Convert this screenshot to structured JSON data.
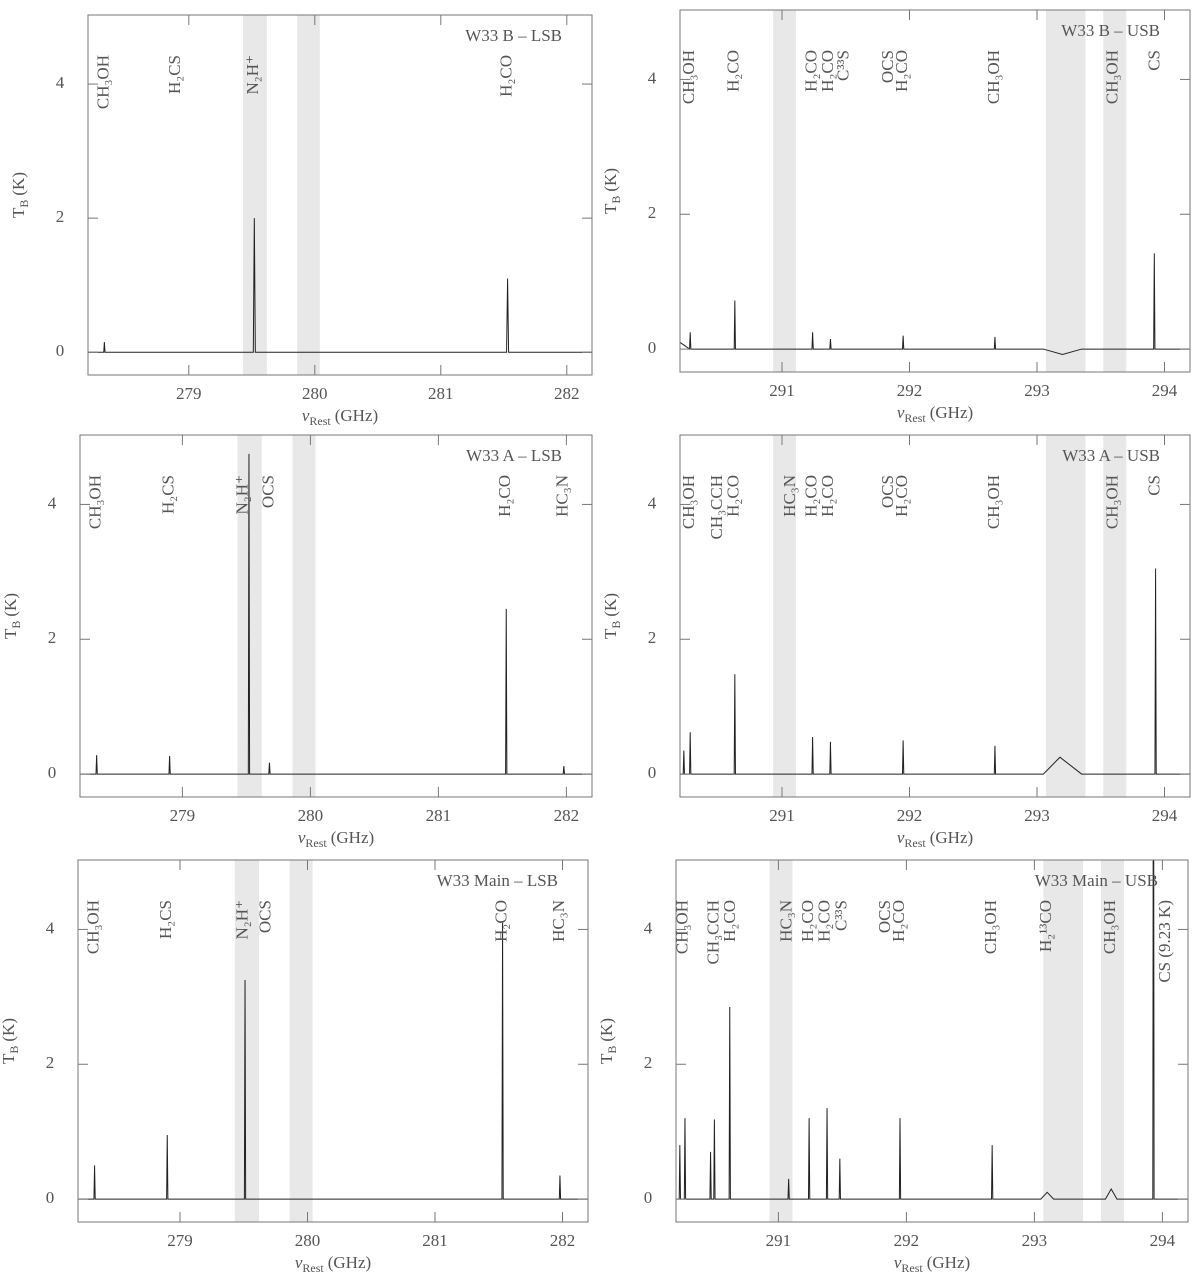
{
  "chart_data": [
    {
      "type": "line",
      "title": "W33 B – LSB",
      "ylabel": {
        "main": "T",
        "sub": "B",
        "unit": "(K)"
      },
      "xlabel": {
        "main": "ν",
        "sub": "Rest",
        "unit": "(GHz)"
      },
      "xlim": [
        278.2,
        282.2
      ],
      "xticks": [
        279,
        280,
        281,
        282
      ],
      "ylim": [
        -0.34,
        5.03
      ],
      "yticks": [
        0,
        2,
        4
      ],
      "color": "#222222",
      "band_color": "#e8e8e8",
      "bands": [
        [
          279.43,
          279.62
        ],
        [
          279.86,
          280.04
        ]
      ],
      "annotations": [
        {
          "text": "CH₃OH",
          "x": 278.33
        },
        {
          "text": "H₂CS",
          "x": 278.9
        },
        {
          "text": "N₂H⁺",
          "x": 279.52
        },
        {
          "text": "H₂CO",
          "x": 281.53
        }
      ],
      "x": [
        278.2,
        278.325,
        278.33,
        278.335,
        279.512,
        279.52,
        279.528,
        281.522,
        281.53,
        281.538,
        282.2
      ],
      "values": [
        0,
        0,
        0.15,
        0,
        0,
        2.0,
        0,
        0,
        1.1,
        0,
        0
      ]
    },
    {
      "type": "line",
      "title": "W33 B – USB",
      "ylabel": {
        "main": "T",
        "sub": "B",
        "unit": "(K)"
      },
      "xlabel": {
        "main": "ν",
        "sub": "Rest",
        "unit": "(GHz)"
      },
      "xlim": [
        290.2,
        294.2
      ],
      "xticks": [
        291,
        292,
        293,
        294
      ],
      "ylim": [
        -0.34,
        5.03
      ],
      "yticks": [
        0,
        2,
        4
      ],
      "color": "#222222",
      "band_color": "#e8e8e8",
      "bands": [
        [
          290.93,
          291.11
        ],
        [
          293.07,
          293.38
        ],
        [
          293.52,
          293.7
        ]
      ],
      "annotations": [
        {
          "text": "CH₃OH",
          "x": 290.28
        },
        {
          "text": "H₂CO",
          "x": 290.63
        },
        {
          "text": "H₂CO",
          "x": 291.24
        },
        {
          "text": "H₂CO",
          "x": 291.37
        },
        {
          "text": "C³³S",
          "x": 291.49
        },
        {
          "text": "OCS",
          "x": 291.84
        },
        {
          "text": "H₂CO",
          "x": 291.95
        },
        {
          "text": "CH₃OH",
          "x": 292.67
        },
        {
          "text": "CH₃OH",
          "x": 293.6
        },
        {
          "text": "CS",
          "x": 293.93
        }
      ],
      "x": [
        290.2,
        290.275,
        290.28,
        290.285,
        290.625,
        290.63,
        290.635,
        291.235,
        291.24,
        291.245,
        291.375,
        291.38,
        291.385,
        291.945,
        291.95,
        291.955,
        292.665,
        292.67,
        292.675,
        293.05,
        293.2,
        293.35,
        293.915,
        293.92,
        293.925,
        294.2
      ],
      "values": [
        0.1,
        0,
        0.25,
        0,
        0,
        0.72,
        0,
        0,
        0.25,
        0,
        0,
        0.15,
        0,
        0,
        0.2,
        0,
        0,
        0.18,
        0,
        0,
        -0.08,
        0,
        0,
        1.42,
        0,
        0
      ]
    },
    {
      "type": "line",
      "title": "W33 A – LSB",
      "ylabel": {
        "main": "T",
        "sub": "B",
        "unit": "(K)"
      },
      "xlabel": {
        "main": "ν",
        "sub": "Rest",
        "unit": "(GHz)"
      },
      "xlim": [
        278.2,
        282.2
      ],
      "xticks": [
        279,
        280,
        281,
        282
      ],
      "ylim": [
        -0.34,
        5.03
      ],
      "yticks": [
        0,
        2,
        4
      ],
      "color": "#222222",
      "band_color": "#e8e8e8",
      "bands": [
        [
          279.43,
          279.62
        ],
        [
          279.86,
          280.04
        ]
      ],
      "annotations": [
        {
          "text": "CH₃OH",
          "x": 278.33
        },
        {
          "text": "H₂CS",
          "x": 278.9
        },
        {
          "text": "N₂H⁺",
          "x": 279.48
        },
        {
          "text": "OCS",
          "x": 279.68
        },
        {
          "text": "H₂CO",
          "x": 281.53
        },
        {
          "text": "HC₃N",
          "x": 281.98
        }
      ],
      "x": [
        278.2,
        278.325,
        278.33,
        278.335,
        278.895,
        278.9,
        278.905,
        279.515,
        279.52,
        279.525,
        279.675,
        279.68,
        279.685,
        281.525,
        281.53,
        281.535,
        281.975,
        281.98,
        281.985,
        282.2
      ],
      "values": [
        0,
        0,
        0.28,
        0,
        0,
        0.27,
        0,
        0,
        4.75,
        0,
        0,
        0.17,
        0,
        0,
        2.45,
        0,
        0,
        0.12,
        0,
        0
      ]
    },
    {
      "type": "line",
      "title": "W33 A – USB",
      "ylabel": {
        "main": "T",
        "sub": "B",
        "unit": "(K)"
      },
      "xlabel": {
        "main": "ν",
        "sub": "Rest",
        "unit": "(GHz)"
      },
      "xlim": [
        290.2,
        294.2
      ],
      "xticks": [
        291,
        292,
        293,
        294
      ],
      "ylim": [
        -0.34,
        5.03
      ],
      "yticks": [
        0,
        2,
        4
      ],
      "color": "#222222",
      "band_color": "#e8e8e8",
      "bands": [
        [
          290.93,
          291.11
        ],
        [
          293.07,
          293.38
        ],
        [
          293.52,
          293.7
        ]
      ],
      "annotations": [
        {
          "text": "CH₃OH",
          "x": 290.28
        },
        {
          "text": "CH₃CCH",
          "x": 290.5
        },
        {
          "text": "H₂CO",
          "x": 290.63
        },
        {
          "text": "HC₃N",
          "x": 291.07
        },
        {
          "text": "H₂CO",
          "x": 291.24
        },
        {
          "text": "H₂CO",
          "x": 291.37
        },
        {
          "text": "OCS",
          "x": 291.84
        },
        {
          "text": "H₂CO",
          "x": 291.95
        },
        {
          "text": "CH₃OH",
          "x": 292.67
        },
        {
          "text": "CH₃OH",
          "x": 293.6
        },
        {
          "text": "CS",
          "x": 293.93
        }
      ],
      "x": [
        290.2,
        290.225,
        290.23,
        290.235,
        290.275,
        290.28,
        290.285,
        290.625,
        290.63,
        290.635,
        291.235,
        291.24,
        291.245,
        291.375,
        291.38,
        291.385,
        291.945,
        291.95,
        291.955,
        292.665,
        292.67,
        292.675,
        293.05,
        293.18,
        293.35,
        293.925,
        293.93,
        293.935,
        294.2
      ],
      "values": [
        0,
        0,
        0.35,
        0,
        0,
        0.62,
        0,
        0,
        1.48,
        0,
        0,
        0.55,
        0,
        0,
        0.48,
        0,
        0,
        0.5,
        0,
        0,
        0.42,
        0,
        0,
        0.25,
        0,
        0,
        3.05,
        0,
        0
      ]
    },
    {
      "type": "line",
      "title": "W33 Main – LSB",
      "ylabel": {
        "main": "T",
        "sub": "B",
        "unit": "(K)"
      },
      "xlabel": {
        "main": "ν",
        "sub": "Rest",
        "unit": "(GHz)"
      },
      "xlim": [
        278.2,
        282.2
      ],
      "xticks": [
        279,
        280,
        281,
        282
      ],
      "ylim": [
        -0.34,
        5.03
      ],
      "yticks": [
        0,
        2,
        4
      ],
      "color": "#222222",
      "band_color": "#e8e8e8",
      "bands": [
        [
          279.43,
          279.62
        ],
        [
          279.86,
          280.04
        ]
      ],
      "annotations": [
        {
          "text": "CH₃OH",
          "x": 278.33
        },
        {
          "text": "H₂CS",
          "x": 278.9
        },
        {
          "text": "N₂H⁺",
          "x": 279.5
        },
        {
          "text": "OCS",
          "x": 279.68
        },
        {
          "text": "H₂CO",
          "x": 281.53
        },
        {
          "text": "HC₃N",
          "x": 281.98
        }
      ],
      "x": [
        278.2,
        278.325,
        278.33,
        278.335,
        278.895,
        278.9,
        278.905,
        279.505,
        279.51,
        279.515,
        281.525,
        281.53,
        281.535,
        281.975,
        281.98,
        281.985,
        282.2
      ],
      "values": [
        0,
        0,
        0.5,
        0,
        0,
        0.95,
        0,
        0,
        3.25,
        0,
        0,
        4.1,
        0,
        0,
        0.35,
        0,
        0
      ]
    },
    {
      "type": "line",
      "title": "W33 Main – USB",
      "ylabel": {
        "main": "T",
        "sub": "B",
        "unit": "(K)"
      },
      "xlabel": {
        "main": "ν",
        "sub": "Rest",
        "unit": "(GHz)"
      },
      "xlim": [
        290.2,
        294.2
      ],
      "xticks": [
        291,
        292,
        293,
        294
      ],
      "ylim": [
        -0.34,
        5.03
      ],
      "yticks": [
        0,
        2,
        4
      ],
      "color": "#222222",
      "band_color": "#e8e8e8",
      "bands": [
        [
          290.93,
          291.11
        ],
        [
          293.07,
          293.38
        ],
        [
          293.52,
          293.7
        ]
      ],
      "annotations": [
        {
          "text": "CH₃OH",
          "x": 290.26
        },
        {
          "text": "CH₃CCH",
          "x": 290.5
        },
        {
          "text": "H₂CO",
          "x": 290.63
        },
        {
          "text": "HC₃N",
          "x": 291.07
        },
        {
          "text": "H₂CO",
          "x": 291.24
        },
        {
          "text": "H₂CO",
          "x": 291.37
        },
        {
          "text": "C³³S",
          "x": 291.5
        },
        {
          "text": "OCS",
          "x": 291.84
        },
        {
          "text": "H₂CO",
          "x": 291.95
        },
        {
          "text": "CH₃OH",
          "x": 292.67
        },
        {
          "text": "H₂¹³CO",
          "x": 293.1
        },
        {
          "text": "CH₃OH",
          "x": 293.6
        },
        {
          "text": "CS (9.23 K)",
          "x": 294.03
        }
      ],
      "x": [
        290.2,
        290.225,
        290.23,
        290.235,
        290.265,
        290.27,
        290.275,
        290.465,
        290.47,
        290.475,
        290.495,
        290.5,
        290.505,
        290.615,
        290.62,
        290.625,
        291.075,
        291.08,
        291.085,
        291.235,
        291.24,
        291.245,
        291.375,
        291.38,
        291.385,
        291.475,
        291.48,
        291.485,
        291.945,
        291.95,
        291.955,
        292.665,
        292.67,
        292.675,
        293.05,
        293.1,
        293.15,
        293.555,
        293.6,
        293.645,
        293.925,
        293.93,
        293.935,
        294.2
      ],
      "values": [
        0,
        0,
        0.8,
        0,
        0,
        1.2,
        0,
        0,
        0.7,
        0,
        0,
        1.18,
        0,
        0,
        2.85,
        0,
        0,
        0.3,
        0,
        0,
        1.2,
        0,
        0,
        1.35,
        0,
        0,
        0.6,
        0,
        0,
        1.2,
        0,
        0,
        0.8,
        0,
        0,
        0.1,
        0,
        0,
        0.15,
        0,
        0,
        9.23,
        0,
        0
      ]
    }
  ]
}
